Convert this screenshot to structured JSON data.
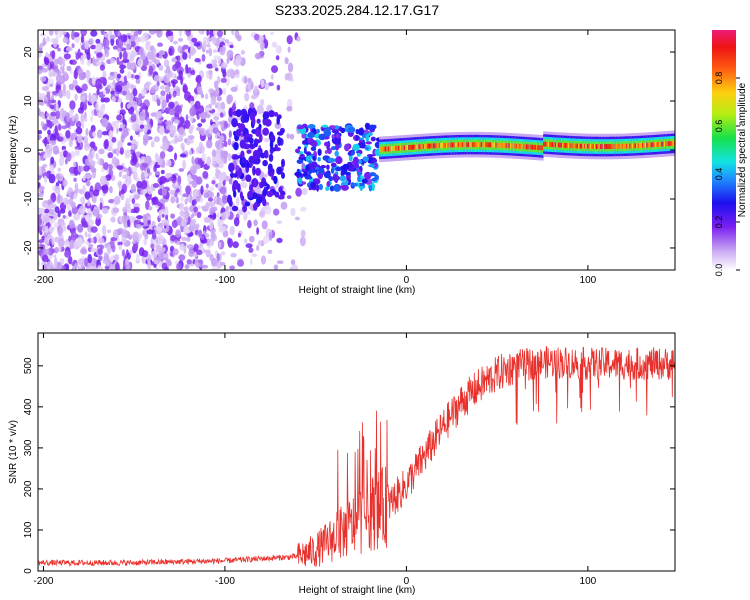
{
  "title": "S233.2025.284.12.17.G17",
  "chart_data": [
    {
      "type": "heatmap",
      "xlabel": "Height of straight line (km)",
      "ylabel": "Frequency (Hz)",
      "xlim": [
        -203,
        148
      ],
      "ylim": [
        -24.5,
        24.5
      ],
      "xticks": [
        -200,
        -100,
        0,
        100
      ],
      "yticks": [
        -20,
        -10,
        0,
        10,
        20
      ],
      "colorbar": {
        "label": "Normalized spectral amplitude",
        "range": [
          0,
          1
        ],
        "ticks": [
          "0.0",
          "0.2",
          "0.4",
          "0.6",
          "0.8"
        ],
        "tick_values": [
          0.0,
          0.2,
          0.4,
          0.6,
          0.8
        ]
      },
      "regions": [
        {
          "name": "noise",
          "x_range": [
            -203,
            -60
          ],
          "freq_range": [
            -24.5,
            24.5
          ],
          "amplitude": "low (0.0-0.15)"
        },
        {
          "name": "transition",
          "x_range": [
            -60,
            -15
          ],
          "freq_range": [
            -8,
            5
          ],
          "amplitude": "0.1-0.4"
        },
        {
          "name": "carrier",
          "x_range": [
            -15,
            148
          ],
          "freq_center": 0.5,
          "freq_halfwidth": 1.5,
          "amplitude": "0.7-1.0"
        }
      ]
    },
    {
      "type": "line",
      "xlabel": "Height of straight line (km)",
      "ylabel": "SNR (10 * v/v)",
      "xlim": [
        -203,
        148
      ],
      "ylim": [
        0,
        580
      ],
      "xticks": [
        -200,
        -100,
        0,
        100
      ],
      "yticks": [
        0,
        100,
        200,
        300,
        400,
        500
      ],
      "color": "#e8312c",
      "series": [
        {
          "name": "SNR",
          "x": [
            -203,
            -150,
            -100,
            -80,
            -60,
            -50,
            -40,
            -30,
            -20,
            -10,
            0,
            10,
            20,
            30,
            40,
            50,
            60,
            70,
            80,
            100,
            120,
            148
          ],
          "y": [
            20,
            20,
            25,
            30,
            35,
            50,
            80,
            110,
            140,
            160,
            210,
            280,
            350,
            410,
            450,
            480,
            500,
            505,
            510,
            505,
            505,
            505
          ]
        }
      ]
    }
  ]
}
